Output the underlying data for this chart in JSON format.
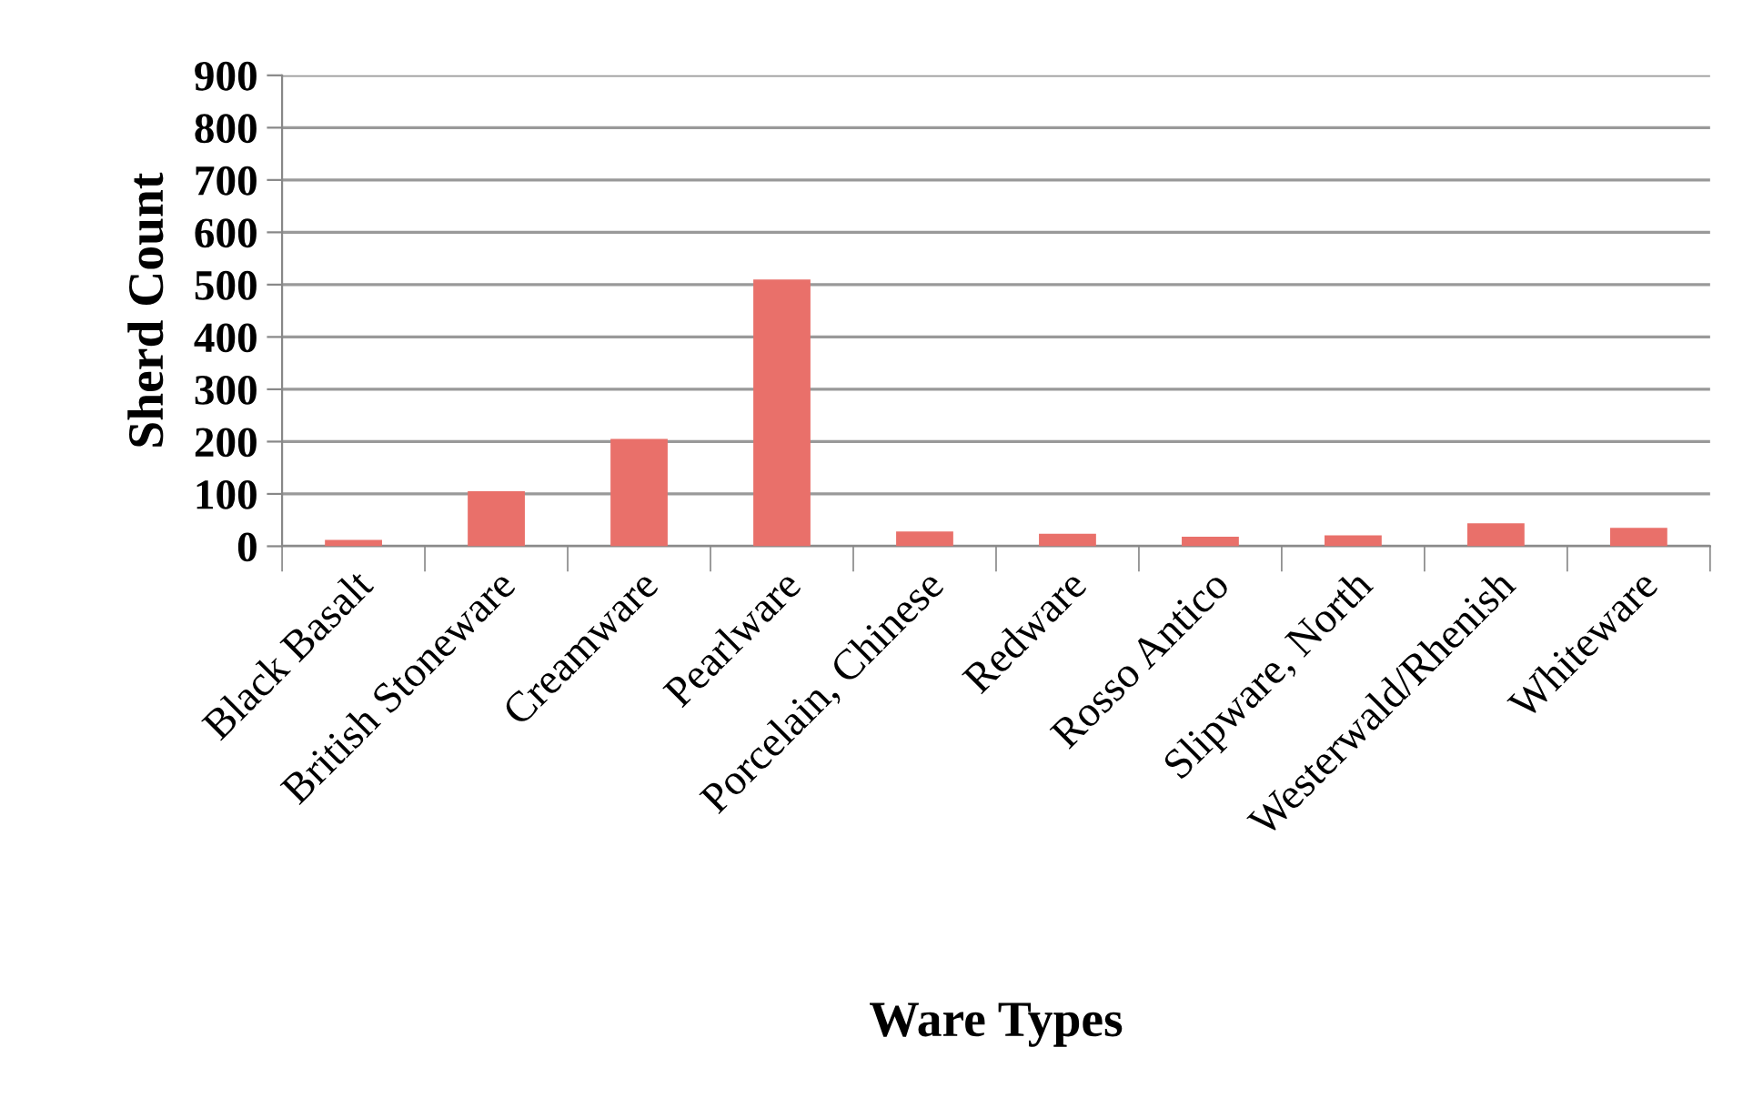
{
  "chart_data": {
    "type": "bar",
    "xlabel": "Ware Types",
    "ylabel": "Sherd Count",
    "categories": [
      "Black Basalt",
      "British Stoneware",
      "Creamware",
      "Pearlware",
      "Porcelain, Chinese",
      "Redware",
      "Rosso Antico",
      "Slipware, North",
      "Westerwald/Rhenish",
      "Whiteware"
    ],
    "values": [
      12,
      105,
      205,
      510,
      28,
      24,
      18,
      21,
      44,
      35
    ],
    "color": "#e9706a",
    "ylim": [
      0,
      900
    ],
    "yticks": [
      0,
      100,
      200,
      300,
      400,
      500,
      600,
      700,
      800,
      900
    ],
    "grid": "y",
    "legend": false
  }
}
